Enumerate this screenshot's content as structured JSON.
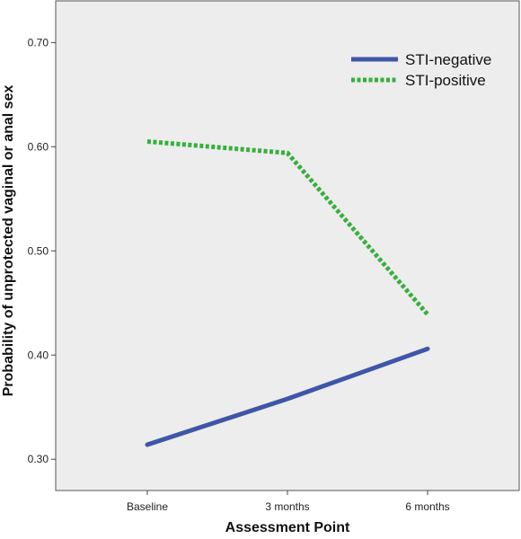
{
  "chart_data": {
    "type": "line",
    "title": "",
    "xlabel": "Assessment Point",
    "ylabel": "Probability of unprotected vaginal or anal sex",
    "categories": [
      "Baseline",
      "3 months",
      "6 months"
    ],
    "ylim": [
      0.27,
      0.74
    ],
    "yticks": [
      0.3,
      0.4,
      0.5,
      0.6,
      0.7
    ],
    "ytick_labels": [
      "0.30",
      "0.40",
      "0.50",
      "0.60",
      "0.70"
    ],
    "grid": false,
    "legend_position": "top-right",
    "plot_background": "#ededed",
    "series": [
      {
        "name": "STI-negative",
        "values": [
          0.314,
          0.358,
          0.406
        ],
        "color": "#3f56a8",
        "style": "solid"
      },
      {
        "name": "STI-positive",
        "values": [
          0.605,
          0.594,
          0.439
        ],
        "color": "#35b03b",
        "style": "dotted"
      }
    ]
  }
}
